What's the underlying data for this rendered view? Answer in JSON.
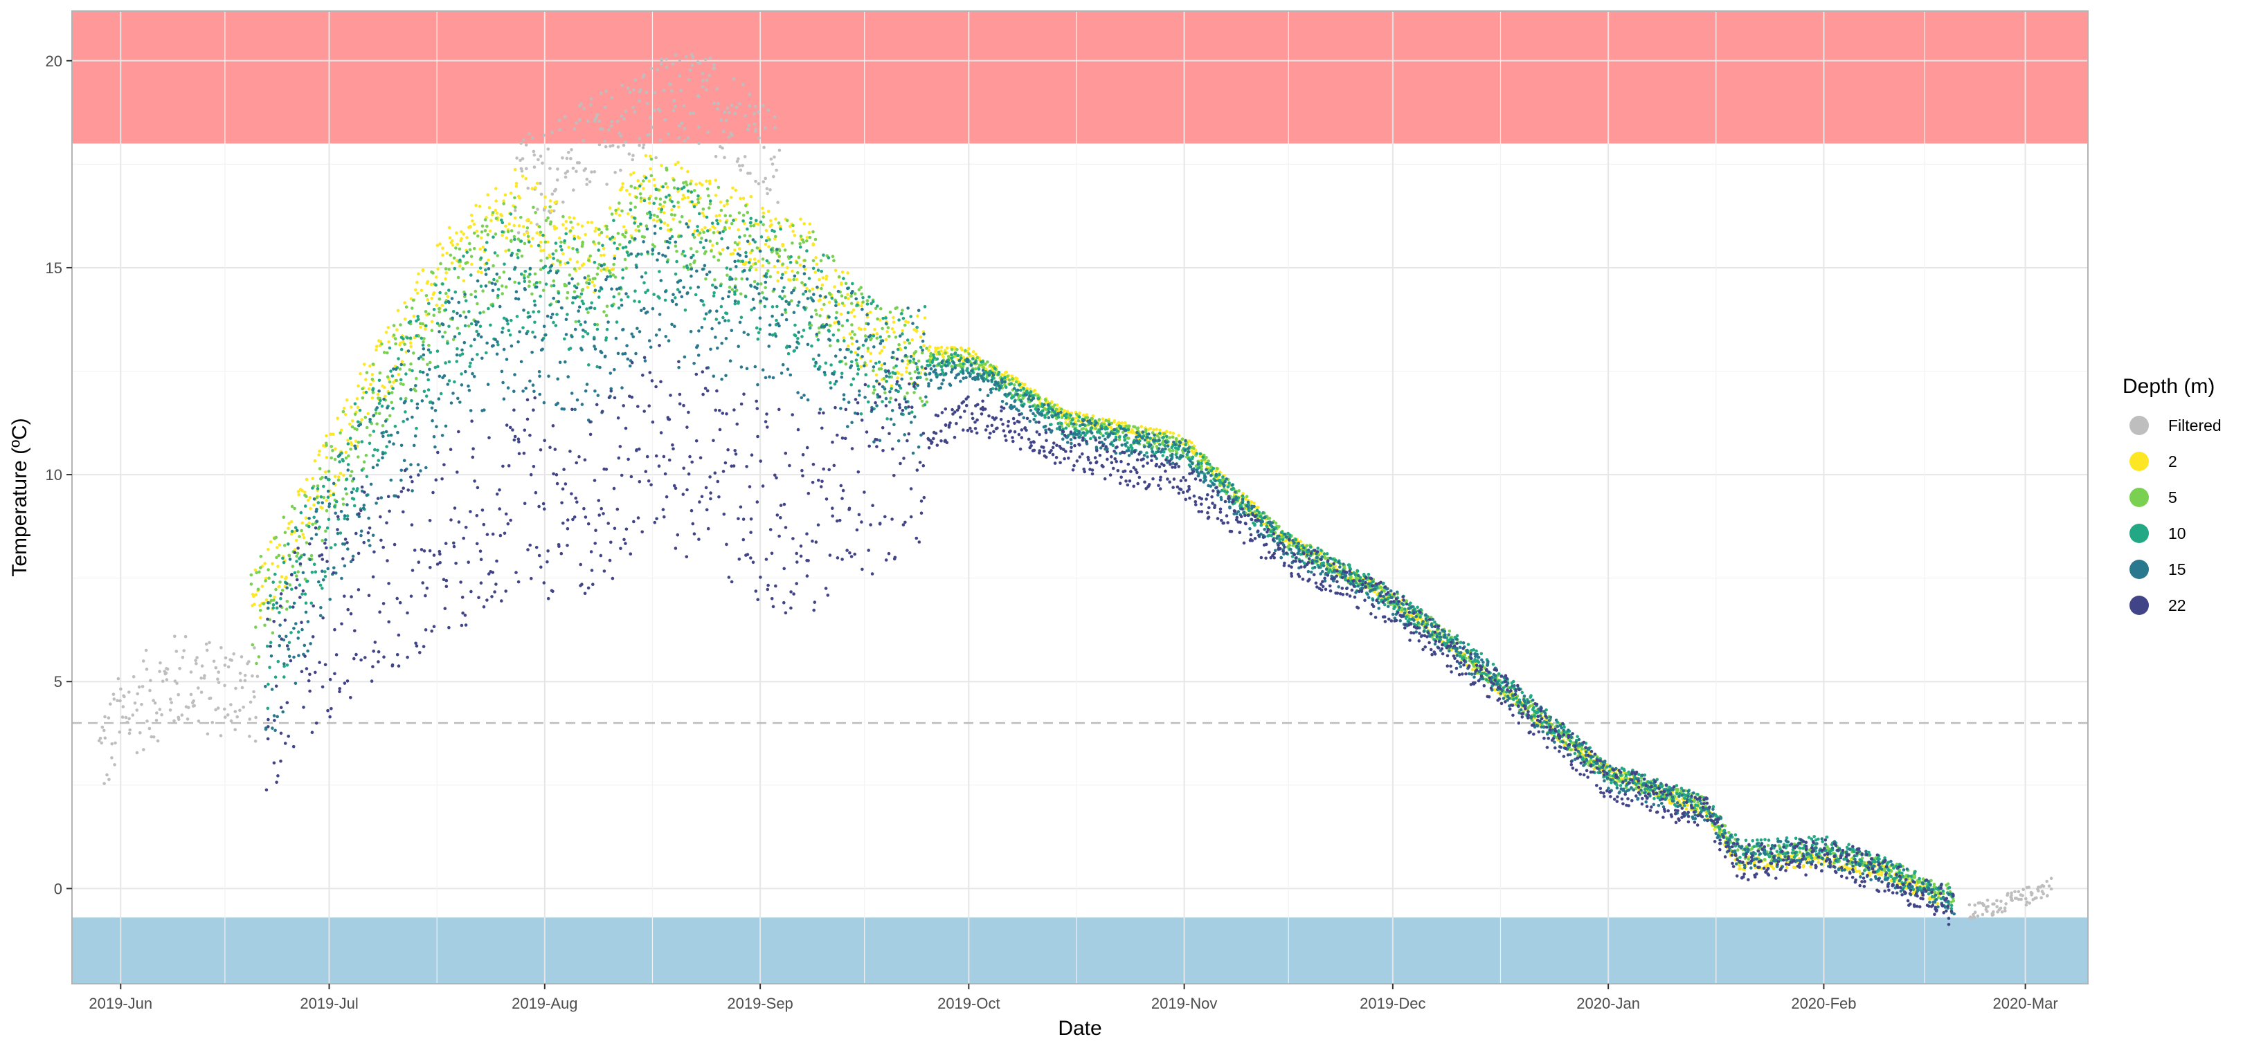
{
  "chart_data": {
    "type": "scatter",
    "xlabel": "Date",
    "ylabel": "Temperature (ºC)",
    "xlim": [
      "2019-05-25",
      "2020-03-10"
    ],
    "ylim": [
      -2.3,
      21.2
    ],
    "x_ticks": [
      {
        "date": "2019-06-01",
        "label": "2019-Jun"
      },
      {
        "date": "2019-07-01",
        "label": "2019-Jul"
      },
      {
        "date": "2019-08-01",
        "label": "2019-Aug"
      },
      {
        "date": "2019-09-01",
        "label": "2019-Sep"
      },
      {
        "date": "2019-10-01",
        "label": "2019-Oct"
      },
      {
        "date": "2019-11-01",
        "label": "2019-Nov"
      },
      {
        "date": "2019-12-01",
        "label": "2019-Dec"
      },
      {
        "date": "2020-01-01",
        "label": "2020-Jan"
      },
      {
        "date": "2020-02-01",
        "label": "2020-Feb"
      },
      {
        "date": "2020-03-01",
        "label": "2020-Mar"
      }
    ],
    "y_ticks": [
      0,
      5,
      10,
      15,
      20
    ],
    "grid": true,
    "bands": [
      {
        "from": 18,
        "to": 21.2,
        "color": "#FF9999"
      },
      {
        "from": -2.3,
        "to": -0.7,
        "color": "#A6CEE3"
      }
    ],
    "reference_line": {
      "y": 4,
      "style": "dashed",
      "color": "#BDBDBD"
    },
    "legend": {
      "title": "Depth (m)",
      "position": "right",
      "entries": [
        {
          "label": "Filtered",
          "color": "#BEBEBE"
        },
        {
          "label": "2",
          "color": "#FDE725"
        },
        {
          "label": "5",
          "color": "#7AD151"
        },
        {
          "label": "10",
          "color": "#22A884"
        },
        {
          "label": "15",
          "color": "#2A788E"
        },
        {
          "label": "22",
          "color": "#414487"
        }
      ]
    },
    "series": [
      {
        "name": "Filtered",
        "color": "#BEBEBE",
        "spread": 1.2,
        "points": [
          [
            "2019-05-29",
            3.2
          ],
          [
            "2019-06-02",
            4.3
          ],
          [
            "2019-06-06",
            4.7
          ],
          [
            "2019-06-10",
            5.1
          ],
          [
            "2019-06-14",
            4.8
          ],
          [
            "2019-06-18",
            4.9
          ],
          [
            "2019-06-21",
            4.6
          ],
          [
            "2019-07-28",
            16.8
          ],
          [
            "2019-08-02",
            17.5
          ],
          [
            "2019-08-06",
            17.8
          ],
          [
            "2019-08-14",
            18.6
          ],
          [
            "2019-08-18",
            18.9
          ],
          [
            "2019-08-22",
            19.1
          ],
          [
            "2019-08-27",
            18.8
          ],
          [
            "2019-09-01",
            18.2
          ],
          [
            "2019-09-04",
            17.3
          ],
          [
            "2020-02-22",
            -0.6
          ],
          [
            "2020-02-26",
            -0.4
          ],
          [
            "2020-03-01",
            -0.2
          ],
          [
            "2020-03-05",
            0.1
          ]
        ]
      },
      {
        "name": "2",
        "color": "#FDE725",
        "spread": 0.9,
        "points": [
          [
            "2019-06-20",
            6.8
          ],
          [
            "2019-06-28",
            9.2
          ],
          [
            "2019-07-08",
            12.5
          ],
          [
            "2019-07-18",
            15.0
          ],
          [
            "2019-07-28",
            16.5
          ],
          [
            "2019-08-08",
            15.2
          ],
          [
            "2019-08-16",
            17.0
          ],
          [
            "2019-09-08",
            15.2
          ],
          [
            "2019-09-18",
            13.0
          ],
          [
            "2019-10-01",
            12.9
          ],
          [
            "2019-10-15",
            11.4
          ],
          [
            "2019-11-01",
            10.8
          ],
          [
            "2019-11-15",
            8.5
          ],
          [
            "2019-12-01",
            7.0
          ],
          [
            "2019-12-10",
            5.8
          ],
          [
            "2019-12-18",
            4.6
          ],
          [
            "2020-01-01",
            2.8
          ],
          [
            "2020-01-15",
            1.9
          ],
          [
            "2020-01-20",
            0.6
          ],
          [
            "2020-02-01",
            0.7
          ],
          [
            "2020-02-10",
            0.4
          ],
          [
            "2020-02-18",
            -0.3
          ]
        ]
      },
      {
        "name": "5",
        "color": "#7AD151",
        "spread": 1.2,
        "points": [
          [
            "2019-06-20",
            6.5
          ],
          [
            "2019-06-28",
            8.8
          ],
          [
            "2019-07-08",
            12.0
          ],
          [
            "2019-07-18",
            14.2
          ],
          [
            "2019-07-28",
            15.8
          ],
          [
            "2019-08-08",
            14.6
          ],
          [
            "2019-08-16",
            16.5
          ],
          [
            "2019-09-08",
            14.8
          ],
          [
            "2019-09-18",
            12.9
          ],
          [
            "2019-10-01",
            12.8
          ],
          [
            "2019-10-15",
            11.3
          ],
          [
            "2019-11-01",
            10.7
          ],
          [
            "2019-11-15",
            8.5
          ],
          [
            "2019-12-01",
            7.0
          ],
          [
            "2019-12-10",
            5.9
          ],
          [
            "2019-12-18",
            4.7
          ],
          [
            "2020-01-01",
            2.8
          ],
          [
            "2020-01-15",
            2.0
          ],
          [
            "2020-01-20",
            0.8
          ],
          [
            "2020-02-01",
            0.9
          ],
          [
            "2020-02-10",
            0.5
          ],
          [
            "2020-02-20",
            -0.2
          ]
        ]
      },
      {
        "name": "10",
        "color": "#22A884",
        "spread": 1.5,
        "points": [
          [
            "2019-06-22",
            5.5
          ],
          [
            "2019-06-28",
            8.2
          ],
          [
            "2019-07-08",
            11.2
          ],
          [
            "2019-07-18",
            13.5
          ],
          [
            "2019-07-28",
            15.0
          ],
          [
            "2019-08-08",
            14.0
          ],
          [
            "2019-08-16",
            15.8
          ],
          [
            "2019-09-08",
            14.2
          ],
          [
            "2019-09-18",
            12.6
          ],
          [
            "2019-10-01",
            12.7
          ],
          [
            "2019-10-15",
            11.2
          ],
          [
            "2019-11-01",
            10.6
          ],
          [
            "2019-11-15",
            8.4
          ],
          [
            "2019-12-01",
            7.0
          ],
          [
            "2019-12-10",
            5.9
          ],
          [
            "2019-12-18",
            4.8
          ],
          [
            "2020-01-01",
            2.8
          ],
          [
            "2020-01-15",
            2.0
          ],
          [
            "2020-01-20",
            0.9
          ],
          [
            "2020-02-01",
            1.0
          ],
          [
            "2020-02-10",
            0.5
          ],
          [
            "2020-02-20",
            -0.3
          ]
        ]
      },
      {
        "name": "15",
        "color": "#2A788E",
        "spread": 1.8,
        "points": [
          [
            "2019-06-22",
            5.0
          ],
          [
            "2019-06-28",
            7.5
          ],
          [
            "2019-07-08",
            10.3
          ],
          [
            "2019-07-18",
            12.5
          ],
          [
            "2019-07-28",
            13.8
          ],
          [
            "2019-08-08",
            13.0
          ],
          [
            "2019-08-16",
            14.6
          ],
          [
            "2019-09-08",
            13.5
          ],
          [
            "2019-09-18",
            12.2
          ],
          [
            "2019-10-01",
            12.5
          ],
          [
            "2019-10-15",
            11.1
          ],
          [
            "2019-11-01",
            10.5
          ],
          [
            "2019-11-15",
            8.3
          ],
          [
            "2019-12-01",
            6.9
          ],
          [
            "2019-12-10",
            5.8
          ],
          [
            "2019-12-18",
            4.7
          ],
          [
            "2020-01-01",
            2.7
          ],
          [
            "2020-01-15",
            1.9
          ],
          [
            "2020-01-20",
            0.8
          ],
          [
            "2020-02-01",
            0.9
          ],
          [
            "2020-02-10",
            0.4
          ],
          [
            "2020-02-20",
            -0.4
          ]
        ]
      },
      {
        "name": "22",
        "color": "#414487",
        "spread": 2.5,
        "points": [
          [
            "2019-06-22",
            4.5
          ],
          [
            "2019-06-28",
            6.2
          ],
          [
            "2019-07-08",
            7.5
          ],
          [
            "2019-07-18",
            8.5
          ],
          [
            "2019-07-28",
            9.5
          ],
          [
            "2019-08-08",
            9.2
          ],
          [
            "2019-08-16",
            10.8
          ],
          [
            "2019-09-08",
            8.8
          ],
          [
            "2019-09-18",
            10.2
          ],
          [
            "2019-10-01",
            11.5
          ],
          [
            "2019-10-15",
            10.6
          ],
          [
            "2019-11-01",
            9.8
          ],
          [
            "2019-11-15",
            8.1
          ],
          [
            "2019-12-01",
            6.8
          ],
          [
            "2019-12-10",
            5.6
          ],
          [
            "2019-12-18",
            4.6
          ],
          [
            "2020-01-01",
            2.6
          ],
          [
            "2020-01-15",
            1.8
          ],
          [
            "2020-01-20",
            0.6
          ],
          [
            "2020-02-01",
            0.8
          ],
          [
            "2020-02-10",
            0.3
          ],
          [
            "2020-02-20",
            -0.5
          ]
        ]
      }
    ]
  }
}
